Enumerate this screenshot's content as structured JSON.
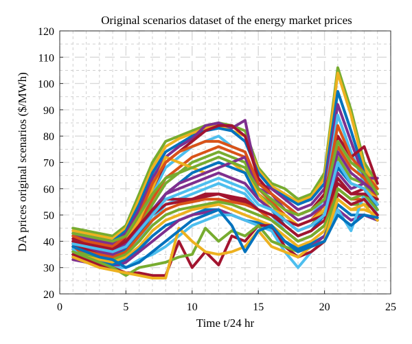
{
  "chart_data": {
    "type": "line",
    "title": "Original scenarios dataset of the energy market prices",
    "xlabel": "Time t/24 hr",
    "ylabel": "DA prices original scenarios ($/MWh)",
    "xlim": [
      0,
      25
    ],
    "ylim": [
      20,
      120
    ],
    "xticks": [
      0,
      5,
      10,
      15,
      20,
      25
    ],
    "yticks": [
      20,
      30,
      40,
      50,
      60,
      70,
      80,
      90,
      100,
      110,
      120
    ],
    "grid": true,
    "legend": "none",
    "x": [
      1,
      2,
      3,
      4,
      5,
      6,
      7,
      8,
      9,
      10,
      11,
      12,
      13,
      14,
      15,
      16,
      17,
      18,
      19,
      20,
      21,
      22,
      23,
      24
    ],
    "series": [
      {
        "color": "#77ac30",
        "values": [
          45,
          44,
          43,
          42,
          46,
          58,
          70,
          78,
          80,
          82,
          84,
          85,
          84,
          82,
          68,
          62,
          60,
          56,
          58,
          66,
          106,
          90,
          70,
          62
        ]
      },
      {
        "color": "#edb120",
        "values": [
          44,
          43,
          42,
          41,
          45,
          56,
          68,
          76,
          79,
          81,
          83,
          84,
          82,
          80,
          67,
          61,
          58,
          55,
          57,
          64,
          104,
          88,
          68,
          60
        ]
      },
      {
        "color": "#0072bd",
        "values": [
          43,
          42,
          41,
          40,
          44,
          54,
          66,
          74,
          77,
          80,
          82,
          83,
          82,
          78,
          66,
          60,
          57,
          54,
          56,
          62,
          97,
          82,
          66,
          58
        ]
      },
      {
        "color": "#7e2f8e",
        "values": [
          42,
          41,
          40,
          39,
          43,
          52,
          64,
          72,
          76,
          79,
          84,
          85,
          83,
          86,
          62,
          60,
          56,
          52,
          54,
          60,
          92,
          78,
          64,
          64
        ]
      },
      {
        "color": "#4dbeee",
        "values": [
          40,
          38,
          37,
          36,
          40,
          48,
          58,
          68,
          72,
          76,
          78,
          80,
          76,
          74,
          60,
          56,
          52,
          48,
          50,
          56,
          88,
          74,
          62,
          56
        ]
      },
      {
        "color": "#a2142f",
        "values": [
          41,
          39,
          38,
          38,
          41,
          50,
          60,
          70,
          74,
          78,
          82,
          84,
          84,
          80,
          64,
          58,
          54,
          50,
          52,
          58,
          80,
          72,
          76,
          62
        ]
      },
      {
        "color": "#d95319",
        "values": [
          39,
          38,
          37,
          36,
          39,
          47,
          56,
          64,
          68,
          72,
          74,
          76,
          74,
          72,
          60,
          55,
          50,
          46,
          48,
          54,
          76,
          68,
          64,
          56
        ]
      },
      {
        "color": "#77ac30",
        "values": [
          38,
          37,
          36,
          35,
          38,
          45,
          54,
          62,
          66,
          70,
          72,
          74,
          72,
          70,
          58,
          54,
          48,
          44,
          46,
          52,
          72,
          64,
          62,
          54
        ]
      },
      {
        "color": "#edb120",
        "values": [
          40,
          39,
          38,
          37,
          40,
          48,
          60,
          72,
          70,
          68,
          66,
          68,
          70,
          66,
          58,
          52,
          50,
          46,
          48,
          52,
          70,
          62,
          60,
          56
        ]
      },
      {
        "color": "#0072bd",
        "values": [
          37,
          36,
          35,
          34,
          37,
          43,
          50,
          58,
          62,
          66,
          68,
          70,
          68,
          66,
          56,
          52,
          46,
          42,
          44,
          50,
          68,
          62,
          60,
          52
        ]
      },
      {
        "color": "#7e2f8e",
        "values": [
          39,
          38,
          37,
          36,
          39,
          45,
          52,
          58,
          60,
          62,
          64,
          66,
          64,
          62,
          56,
          52,
          48,
          44,
          46,
          50,
          66,
          60,
          62,
          58
        ]
      },
      {
        "color": "#4dbeee",
        "values": [
          36,
          35,
          34,
          33,
          36,
          41,
          48,
          54,
          56,
          58,
          60,
          62,
          60,
          58,
          52,
          50,
          44,
          40,
          42,
          46,
          64,
          58,
          58,
          50
        ]
      },
      {
        "color": "#a2142f",
        "values": [
          38,
          37,
          36,
          35,
          38,
          44,
          50,
          54,
          55,
          56,
          58,
          58,
          56,
          55,
          52,
          50,
          46,
          42,
          44,
          48,
          62,
          58,
          60,
          54
        ]
      },
      {
        "color": "#d95319",
        "values": [
          37,
          36,
          35,
          34,
          36,
          42,
          48,
          52,
          54,
          55,
          56,
          56,
          55,
          54,
          52,
          48,
          44,
          40,
          42,
          46,
          60,
          56,
          56,
          50
        ]
      },
      {
        "color": "#77ac30",
        "values": [
          36,
          35,
          34,
          33,
          35,
          40,
          46,
          50,
          52,
          53,
          54,
          55,
          54,
          52,
          50,
          48,
          44,
          40,
          42,
          46,
          58,
          54,
          54,
          52
        ]
      },
      {
        "color": "#edb120",
        "values": [
          35,
          34,
          33,
          32,
          34,
          38,
          44,
          48,
          50,
          52,
          53,
          54,
          52,
          50,
          48,
          46,
          42,
          38,
          40,
          44,
          56,
          52,
          52,
          50
        ]
      },
      {
        "color": "#0072bd",
        "values": [
          34,
          33,
          32,
          31,
          33,
          37,
          42,
          46,
          48,
          50,
          52,
          52,
          50,
          48,
          47,
          45,
          40,
          37,
          39,
          42,
          54,
          50,
          50,
          48
        ]
      },
      {
        "color": "#7e2f8e",
        "values": [
          33,
          32,
          31,
          30,
          32,
          36,
          40,
          44,
          48,
          50,
          51,
          52,
          50,
          48,
          46,
          44,
          40,
          36,
          38,
          42,
          52,
          48,
          50,
          48
        ]
      },
      {
        "color": "#4dbeee",
        "values": [
          37,
          32,
          31,
          30,
          30,
          33,
          35,
          38,
          42,
          46,
          48,
          50,
          50,
          48,
          46,
          44,
          36,
          30,
          36,
          40,
          52,
          44,
          58,
          50
        ]
      },
      {
        "color": "#a2142f",
        "values": [
          35,
          33,
          31,
          30,
          28,
          28,
          27,
          27,
          40,
          30,
          36,
          31,
          42,
          40,
          46,
          46,
          38,
          34,
          36,
          40,
          58,
          54,
          56,
          50
        ]
      },
      {
        "color": "#77ac30",
        "values": [
          36,
          34,
          32,
          30,
          27,
          30,
          31,
          32,
          34,
          35,
          45,
          40,
          44,
          42,
          46,
          40,
          38,
          36,
          38,
          40,
          60,
          56,
          58,
          52
        ]
      },
      {
        "color": "#edb120",
        "values": [
          34,
          32,
          30,
          29,
          28,
          27,
          26,
          26,
          45,
          40,
          36,
          35,
          36,
          38,
          44,
          38,
          36,
          34,
          38,
          40,
          56,
          52,
          54,
          48
        ]
      },
      {
        "color": "#0072bd",
        "values": [
          38,
          36,
          34,
          33,
          30,
          32,
          36,
          40,
          44,
          48,
          50,
          52,
          46,
          36,
          44,
          46,
          40,
          36,
          38,
          40,
          50,
          46,
          50,
          49
        ]
      },
      {
        "color": "#7e2f8e",
        "values": [
          40,
          38,
          36,
          35,
          38,
          44,
          52,
          58,
          62,
          64,
          66,
          68,
          70,
          72,
          60,
          58,
          52,
          48,
          50,
          54,
          74,
          66,
          62,
          58
        ]
      },
      {
        "color": "#d95319",
        "values": [
          42,
          40,
          39,
          38,
          42,
          50,
          62,
          70,
          74,
          76,
          78,
          78,
          76,
          74,
          62,
          58,
          54,
          50,
          52,
          56,
          84,
          72,
          66,
          60
        ]
      },
      {
        "color": "#a2142f",
        "values": [
          40,
          39,
          38,
          37,
          40,
          46,
          52,
          56,
          56,
          56,
          57,
          58,
          57,
          56,
          52,
          50,
          48,
          46,
          48,
          50,
          64,
          58,
          58,
          56
        ]
      },
      {
        "color": "#77ac30",
        "values": [
          43,
          42,
          41,
          40,
          42,
          50,
          58,
          64,
          66,
          68,
          70,
          72,
          70,
          68,
          60,
          56,
          52,
          50,
          52,
          56,
          78,
          70,
          66,
          58
        ]
      },
      {
        "color": "#4dbeee",
        "values": [
          39,
          38,
          37,
          36,
          38,
          44,
          50,
          56,
          58,
          60,
          62,
          64,
          62,
          60,
          54,
          52,
          48,
          44,
          46,
          50,
          70,
          62,
          60,
          54
        ]
      }
    ]
  }
}
